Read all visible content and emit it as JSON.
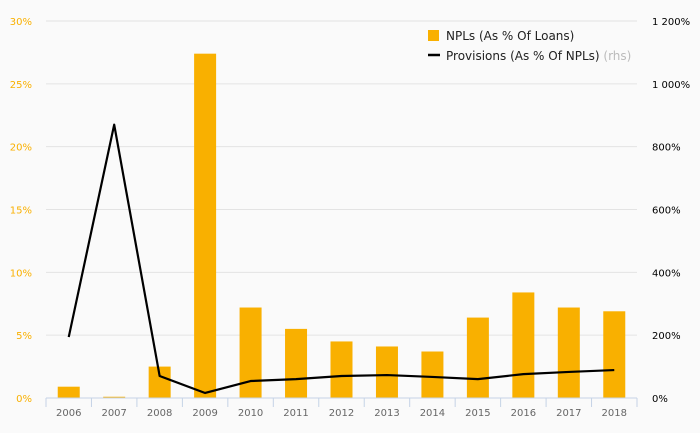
{
  "chart_data": {
    "type": "bar+line",
    "categories": [
      "2006",
      "2007",
      "2008",
      "2009",
      "2010",
      "2011",
      "2012",
      "2013",
      "2014",
      "2015",
      "2016",
      "2017",
      "2018"
    ],
    "series": [
      {
        "name": "NPLs (As % Of Loans)",
        "type": "bar",
        "axis": "left",
        "color": "#f9b000",
        "values": [
          0.9,
          0.1,
          2.5,
          27.4,
          7.2,
          5.5,
          4.5,
          4.1,
          3.7,
          6.4,
          8.4,
          7.2,
          6.9
        ]
      },
      {
        "name": "Provisions (As % Of NPLs)",
        "suffix": "(rhs)",
        "type": "line",
        "axis": "right",
        "color": "#000000",
        "values": [
          194,
          870,
          70,
          16,
          54,
          60,
          70,
          73,
          67,
          60,
          76,
          83,
          89
        ]
      }
    ],
    "left_axis": {
      "ylim": [
        0,
        30
      ],
      "ticks": [
        0,
        5,
        10,
        15,
        20,
        25,
        30
      ],
      "tick_labels": [
        "0%",
        "5%",
        "10%",
        "15%",
        "20%",
        "25%",
        "30%"
      ],
      "color": "#f9b000"
    },
    "right_axis": {
      "ylim": [
        0,
        1200
      ],
      "ticks": [
        0,
        200,
        400,
        600,
        800,
        1000,
        1200
      ],
      "tick_labels": [
        "0%",
        "200%",
        "400%",
        "600%",
        "800%",
        "1 000%",
        "1 200%"
      ],
      "color": "#000000"
    },
    "grid": true,
    "legend_position": "top-right"
  }
}
